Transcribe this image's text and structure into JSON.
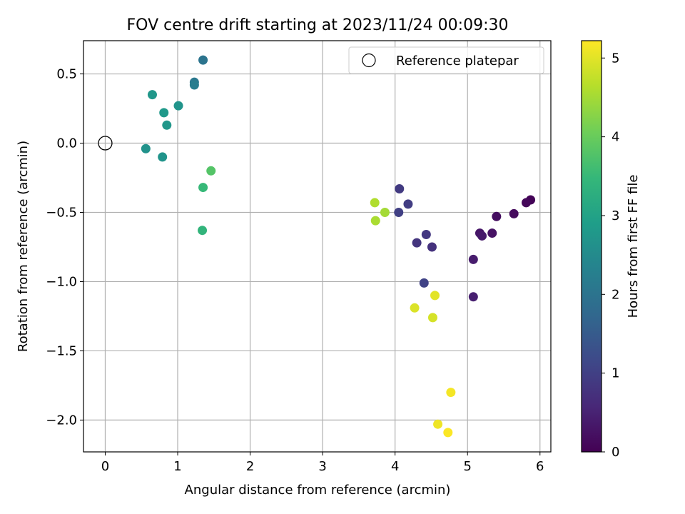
{
  "chart_data": {
    "type": "scatter",
    "title": "FOV centre drift starting at 2023/11/24 00:09:30",
    "xlabel": "Angular distance from reference (arcmin)",
    "ylabel": "Rotation from reference (arcmin)",
    "xlim": [
      -0.3,
      6.15
    ],
    "ylim": [
      -2.23,
      0.74
    ],
    "xticks": [
      0,
      1,
      2,
      3,
      4,
      5,
      6
    ],
    "xtick_labels": [
      "0",
      "1",
      "2",
      "3",
      "4",
      "5",
      "6"
    ],
    "yticks": [
      0.5,
      0.0,
      -0.5,
      -1.0,
      -1.5,
      -2.0
    ],
    "ytick_labels": [
      "0.5",
      "0.0",
      "−0.5",
      "−1.0",
      "−1.5",
      "−2.0"
    ],
    "grid": true,
    "legend": {
      "placement": "top-right",
      "entries": [
        "Reference platepar"
      ]
    },
    "reference_point": {
      "name": "Reference platepar",
      "x": 0.0,
      "y": 0.0,
      "marker": "open-circle"
    },
    "colorbar": {
      "label": "Hours from first FF file",
      "range": [
        0,
        5.22
      ],
      "ticks": [
        0,
        1,
        2,
        3,
        4,
        5
      ],
      "tick_labels": [
        "0",
        "1",
        "2",
        "3",
        "4",
        "5"
      ],
      "colormap": "viridis"
    },
    "colormap_stops": [
      "#440154",
      "#482878",
      "#3e4989",
      "#31688e",
      "#26828e",
      "#1f9e89",
      "#35b779",
      "#6ece58",
      "#b5de2b",
      "#fde725"
    ],
    "points": [
      {
        "x": 5.87,
        "y": -0.41,
        "c": 0.05
      },
      {
        "x": 5.81,
        "y": -0.43,
        "c": 0.1
      },
      {
        "x": 5.64,
        "y": -0.51,
        "c": 0.15
      },
      {
        "x": 5.4,
        "y": -0.53,
        "c": 0.2
      },
      {
        "x": 5.34,
        "y": -0.65,
        "c": 0.25
      },
      {
        "x": 5.17,
        "y": -0.65,
        "c": 0.3
      },
      {
        "x": 5.2,
        "y": -0.67,
        "c": 0.35
      },
      {
        "x": 5.08,
        "y": -0.84,
        "c": 0.4
      },
      {
        "x": 5.08,
        "y": -1.11,
        "c": 0.45
      },
      {
        "x": 4.06,
        "y": -0.33,
        "c": 0.9
      },
      {
        "x": 4.18,
        "y": -0.44,
        "c": 0.95
      },
      {
        "x": 4.05,
        "y": -0.5,
        "c": 1.0
      },
      {
        "x": 4.43,
        "y": -0.66,
        "c": 0.85
      },
      {
        "x": 4.3,
        "y": -0.72,
        "c": 0.8
      },
      {
        "x": 4.51,
        "y": -0.75,
        "c": 0.75
      },
      {
        "x": 4.4,
        "y": -1.01,
        "c": 1.05
      },
      {
        "x": 1.35,
        "y": 0.6,
        "c": 2.0
      },
      {
        "x": 1.23,
        "y": 0.44,
        "c": 2.1
      },
      {
        "x": 1.23,
        "y": 0.42,
        "c": 2.2
      },
      {
        "x": 0.65,
        "y": 0.35,
        "c": 2.75
      },
      {
        "x": 1.01,
        "y": 0.27,
        "c": 2.7
      },
      {
        "x": 0.81,
        "y": 0.22,
        "c": 2.8
      },
      {
        "x": 0.85,
        "y": 0.13,
        "c": 2.75
      },
      {
        "x": 0.56,
        "y": -0.04,
        "c": 2.65
      },
      {
        "x": 0.79,
        "y": -0.1,
        "c": 2.7
      },
      {
        "x": 1.46,
        "y": -0.2,
        "c": 3.8
      },
      {
        "x": 1.35,
        "y": -0.32,
        "c": 3.5
      },
      {
        "x": 1.34,
        "y": -0.63,
        "c": 3.4
      },
      {
        "x": 3.72,
        "y": -0.43,
        "c": 4.6
      },
      {
        "x": 3.86,
        "y": -0.5,
        "c": 4.5
      },
      {
        "x": 3.73,
        "y": -0.56,
        "c": 4.55
      },
      {
        "x": 4.55,
        "y": -1.1,
        "c": 5.0
      },
      {
        "x": 4.27,
        "y": -1.19,
        "c": 4.95
      },
      {
        "x": 4.52,
        "y": -1.26,
        "c": 4.9
      },
      {
        "x": 4.77,
        "y": -1.8,
        "c": 5.15
      },
      {
        "x": 4.59,
        "y": -2.03,
        "c": 5.1
      },
      {
        "x": 4.73,
        "y": -2.09,
        "c": 5.2
      }
    ]
  }
}
